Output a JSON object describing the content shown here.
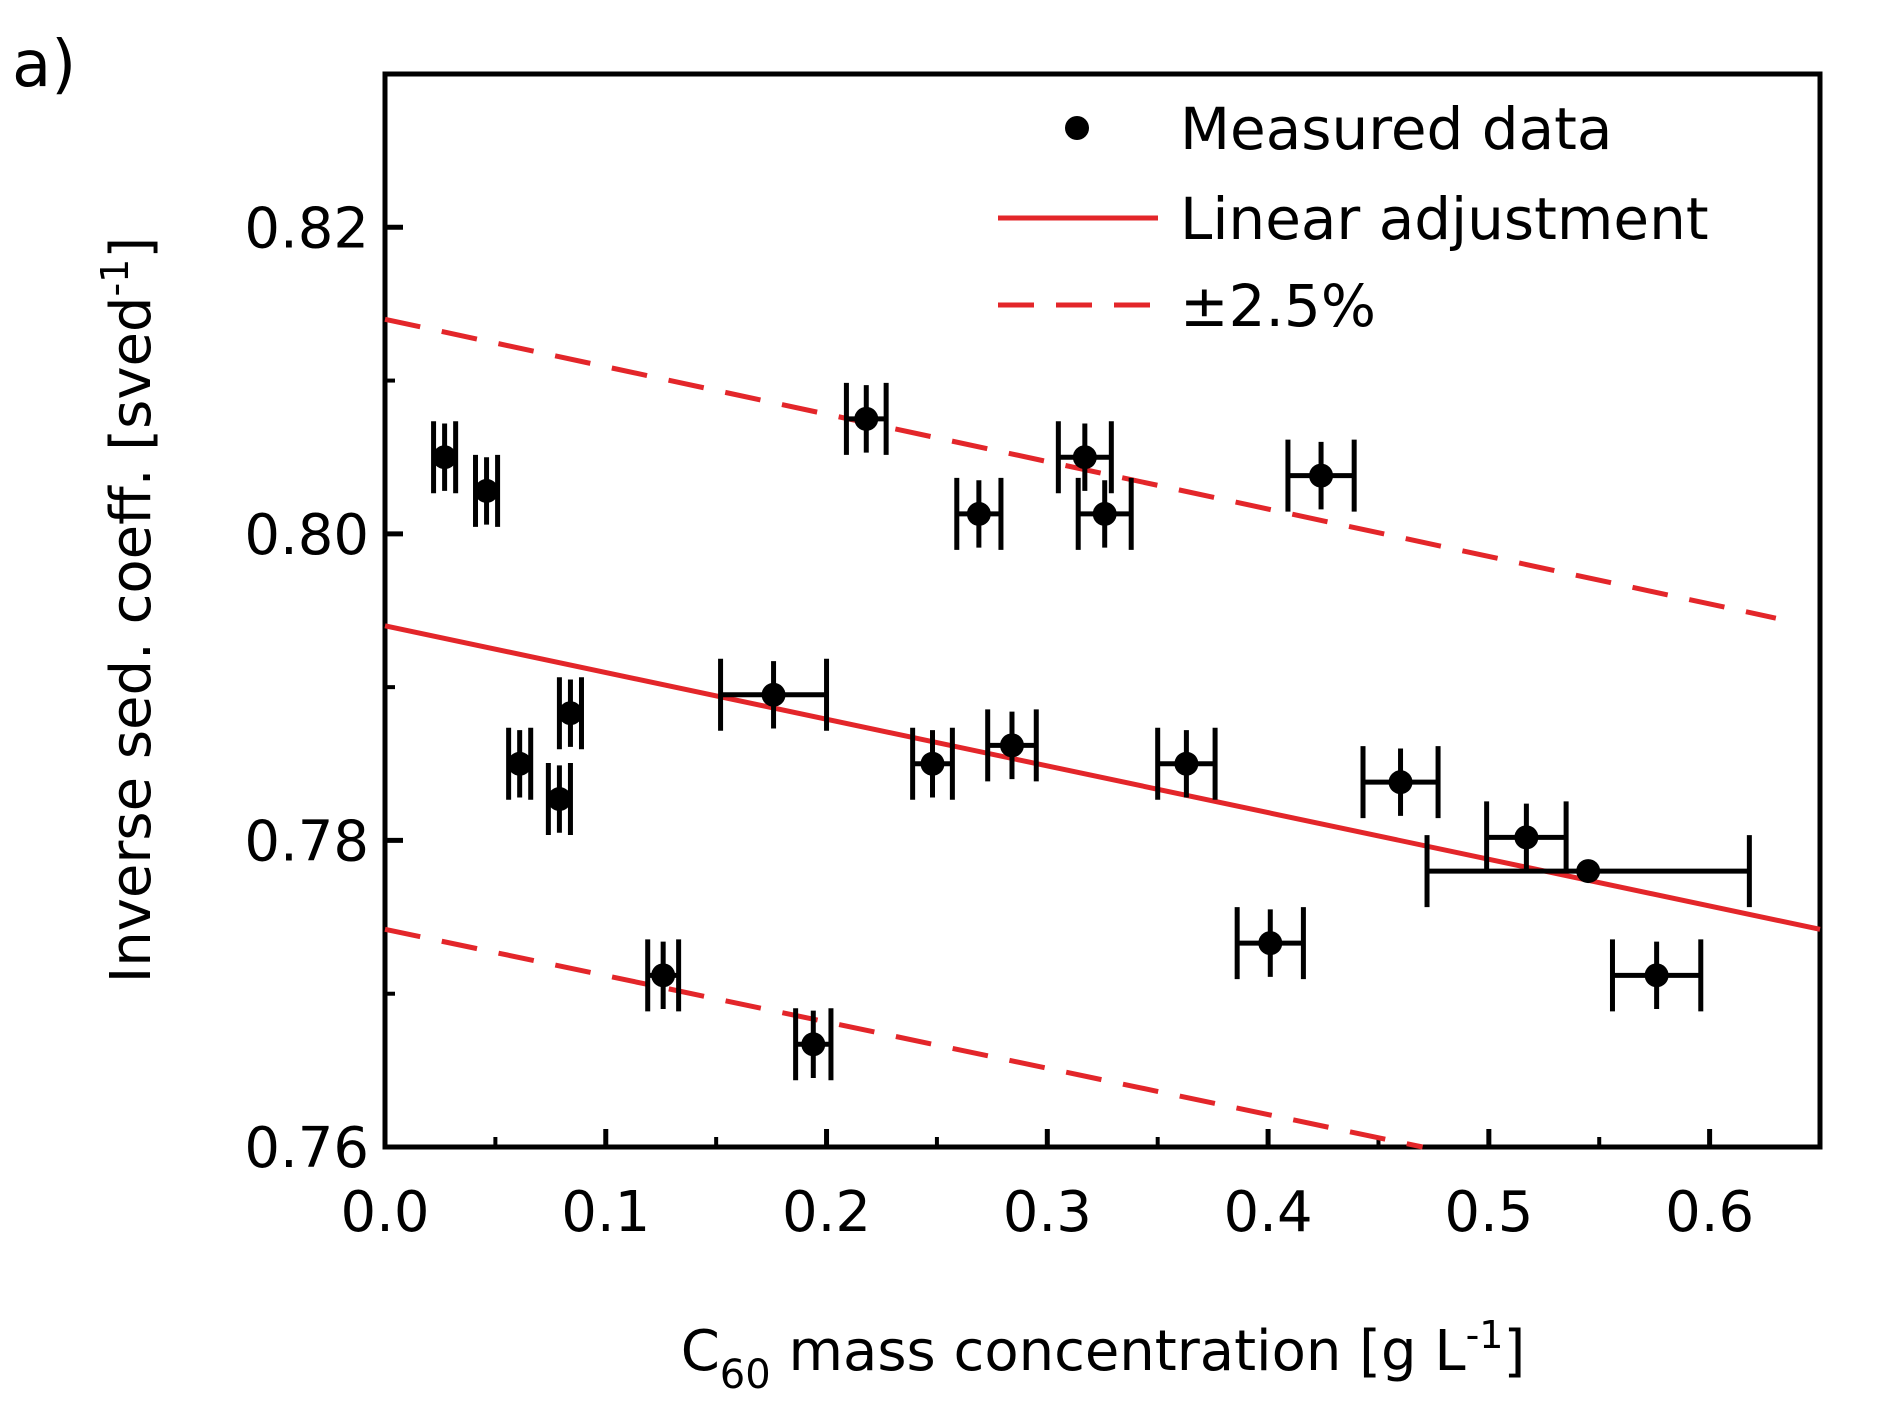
{
  "chart_data": {
    "type": "scatter",
    "panel_label": "a)",
    "xlabel": {
      "main": "C",
      "sub": "60",
      "rest": " mass concentration [g L",
      "sup": "-1",
      "end": "]"
    },
    "ylabel": {
      "main": "Inverse sed. coeff.  [sved",
      "sup": "-1",
      "end": "]"
    },
    "xlim": [
      0.0,
      0.65
    ],
    "ylim": [
      0.76,
      0.83
    ],
    "xticks": [
      0.0,
      0.1,
      0.2,
      0.3,
      0.4,
      0.5,
      0.6
    ],
    "xtick_labels": [
      "0.0",
      "0.1",
      "0.2",
      "0.3",
      "0.4",
      "0.5",
      "0.6"
    ],
    "yticks": [
      0.76,
      0.78,
      0.8,
      0.82
    ],
    "ytick_labels": [
      "0.76",
      "0.78",
      "0.80",
      "0.82"
    ],
    "y_minor_ticks": [
      0.77,
      0.79,
      0.81
    ],
    "legend": {
      "position": "top-right",
      "entries": [
        {
          "label": "Measured data",
          "style": "marker"
        },
        {
          "label": "Linear adjustment",
          "style": "solid"
        },
        {
          "label": "±2.5%",
          "style": "dashed"
        }
      ]
    },
    "series": [
      {
        "name": "Measured data",
        "points": [
          {
            "x": 0.027,
            "y": 0.805,
            "xerr": 0.005,
            "yerr": 0.0022
          },
          {
            "x": 0.046,
            "y": 0.8028,
            "xerr": 0.005,
            "yerr": 0.0022
          },
          {
            "x": 0.061,
            "y": 0.785,
            "xerr": 0.005,
            "yerr": 0.0022
          },
          {
            "x": 0.079,
            "y": 0.7827,
            "xerr": 0.005,
            "yerr": 0.0022
          },
          {
            "x": 0.084,
            "y": 0.7883,
            "xerr": 0.005,
            "yerr": 0.0022
          },
          {
            "x": 0.126,
            "y": 0.7712,
            "xerr": 0.007,
            "yerr": 0.0022
          },
          {
            "x": 0.176,
            "y": 0.7895,
            "xerr": 0.024,
            "yerr": 0.0022
          },
          {
            "x": 0.194,
            "y": 0.7667,
            "xerr": 0.008,
            "yerr": 0.0022
          },
          {
            "x": 0.218,
            "y": 0.8075,
            "xerr": 0.009,
            "yerr": 0.0022
          },
          {
            "x": 0.248,
            "y": 0.785,
            "xerr": 0.009,
            "yerr": 0.0022
          },
          {
            "x": 0.269,
            "y": 0.8013,
            "xerr": 0.01,
            "yerr": 0.0022
          },
          {
            "x": 0.284,
            "y": 0.7862,
            "xerr": 0.011,
            "yerr": 0.0022
          },
          {
            "x": 0.317,
            "y": 0.805,
            "xerr": 0.012,
            "yerr": 0.0022
          },
          {
            "x": 0.326,
            "y": 0.8013,
            "xerr": 0.012,
            "yerr": 0.0022
          },
          {
            "x": 0.363,
            "y": 0.785,
            "xerr": 0.013,
            "yerr": 0.0022
          },
          {
            "x": 0.401,
            "y": 0.7733,
            "xerr": 0.015,
            "yerr": 0.0022
          },
          {
            "x": 0.424,
            "y": 0.8038,
            "xerr": 0.015,
            "yerr": 0.0022
          },
          {
            "x": 0.46,
            "y": 0.7838,
            "xerr": 0.017,
            "yerr": 0.0022
          },
          {
            "x": 0.517,
            "y": 0.7802,
            "xerr": 0.018,
            "yerr": 0.0022
          },
          {
            "x": 0.545,
            "y": 0.778,
            "xerr": 0.073,
            "yerr": 0.0
          },
          {
            "x": 0.576,
            "y": 0.7712,
            "xerr": 0.02,
            "yerr": 0.0022
          }
        ]
      },
      {
        "name": "Linear adjustment",
        "line": {
          "x": [
            0.0,
            0.65
          ],
          "y": [
            0.794,
            0.7742
          ]
        }
      },
      {
        "name": "±2.5% upper",
        "line": {
          "x": [
            0.0,
            0.63
          ],
          "y": [
            0.814,
            0.7945
          ]
        }
      },
      {
        "name": "±2.5% lower",
        "line": {
          "x": [
            0.0,
            0.47
          ],
          "y": [
            0.7742,
            0.76
          ]
        }
      }
    ],
    "colors": {
      "markers": "#000000",
      "fit": "#e3262a",
      "band": "#e3262a",
      "axes": "#000000"
    }
  }
}
